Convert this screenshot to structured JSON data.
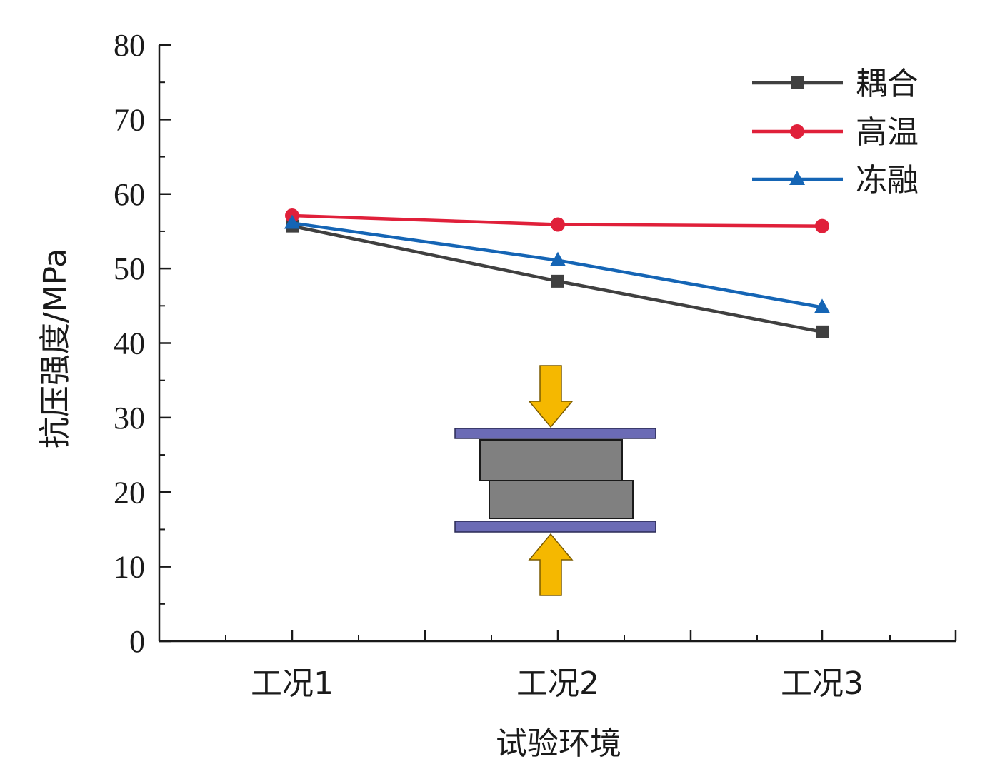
{
  "chart_data": {
    "type": "line",
    "title": "",
    "xlabel": "试验环境",
    "ylabel": "抗压强度/MPa",
    "categories": [
      "工况1",
      "工况2",
      "工况3"
    ],
    "ylim": [
      0,
      80
    ],
    "yticks": [
      0,
      10,
      20,
      30,
      40,
      50,
      60,
      70,
      80
    ],
    "grid": false,
    "legend_position": "top-right",
    "series": [
      {
        "name": "耦合",
        "values": [
          55.7,
          48.3,
          41.5
        ],
        "color": "#404040",
        "marker": "square"
      },
      {
        "name": "高温",
        "values": [
          57.1,
          55.9,
          55.7
        ],
        "color": "#e0203a",
        "marker": "circle"
      },
      {
        "name": "冻融",
        "values": [
          56.1,
          51.1,
          44.8
        ],
        "color": "#1565b5",
        "marker": "triangle"
      }
    ],
    "inset": {
      "description_icon": "compression-test-specimen-icon",
      "plate_color": "#6b6bb5",
      "block_color": "#808080",
      "arrow_color": "#f5b800"
    }
  }
}
